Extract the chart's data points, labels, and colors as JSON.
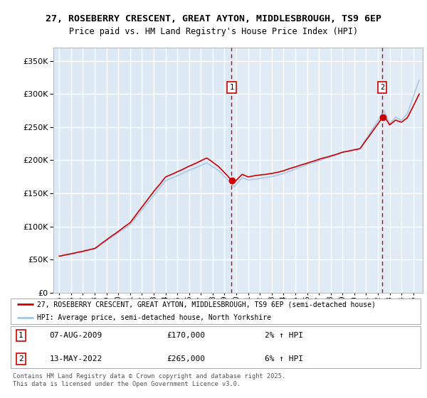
{
  "title_line1": "27, ROSEBERRY CRESCENT, GREAT AYTON, MIDDLESBROUGH, TS9 6EP",
  "title_line2": "Price paid vs. HM Land Registry's House Price Index (HPI)",
  "legend_label1": "27, ROSEBERRY CRESCENT, GREAT AYTON, MIDDLESBROUGH, TS9 6EP (semi-detached house)",
  "legend_label2": "HPI: Average price, semi-detached house, North Yorkshire",
  "footnote": "Contains HM Land Registry data © Crown copyright and database right 2025.\nThis data is licensed under the Open Government Licence v3.0.",
  "marker1_date": "07-AUG-2009",
  "marker1_price": "£170,000",
  "marker1_hpi": "2% ↑ HPI",
  "marker2_date": "13-MAY-2022",
  "marker2_price": "£265,000",
  "marker2_hpi": "6% ↑ HPI",
  "ylim": [
    0,
    370000
  ],
  "ytick_values": [
    0,
    50000,
    100000,
    150000,
    200000,
    250000,
    300000,
    350000
  ],
  "background_color": "#dce9f5",
  "background_color_right": "#e8f0f8",
  "line_color_property": "#cc0000",
  "line_color_hpi": "#a8c4e0",
  "grid_color": "#ffffff",
  "marker_line_color": "#cc0000",
  "marker_box_color": "#cc0000",
  "purchase1_year": 2009.6,
  "purchase1_value": 170000,
  "purchase2_year": 2022.37,
  "purchase2_value": 265000
}
